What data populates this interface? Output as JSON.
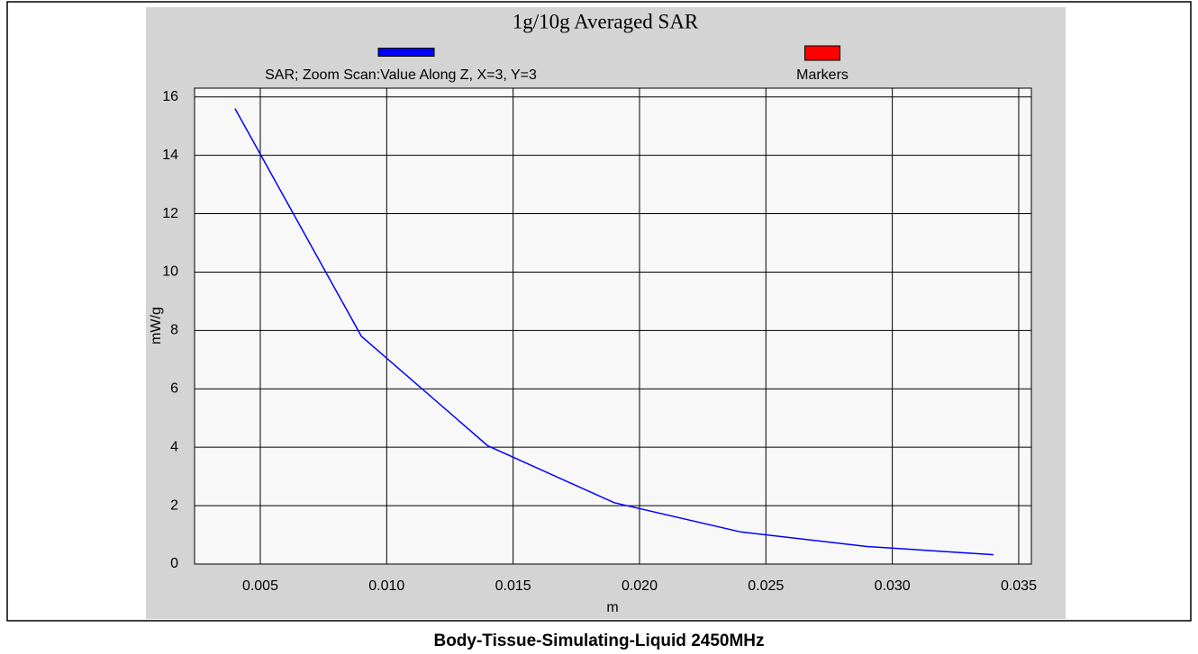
{
  "chart_data": {
    "type": "line",
    "title": "1g/10g Averaged SAR",
    "caption": "Body-Tissue-Simulating-Liquid 2450MHz",
    "x_label": "m",
    "y_label": "mW/g",
    "x": [
      0.004,
      0.009,
      0.014,
      0.019,
      0.024,
      0.029,
      0.034
    ],
    "series": [
      {
        "name": "SAR; Zoom Scan:Value Along Z, X=3, Y=3",
        "color": "#0000ff",
        "values": [
          15.6,
          7.8,
          4.05,
          2.1,
          1.1,
          0.6,
          0.32
        ]
      },
      {
        "name": "Markers",
        "color": "#ff0000",
        "values": [
          null,
          null,
          null,
          null,
          null,
          null,
          null
        ]
      }
    ],
    "xlim": [
      0.0024,
      0.0355
    ],
    "ylim": [
      0,
      16.3
    ],
    "xticks": [
      0.005,
      {
        "value": 0.01,
        "label": "0.010"
      },
      0.015,
      {
        "value": 0.02,
        "label": "0.020"
      },
      0.025,
      {
        "value": 0.03,
        "label": "0.030"
      },
      0.035
    ],
    "yticks": [
      0,
      2,
      4,
      6,
      8,
      10,
      12,
      14,
      16
    ],
    "grid": true
  }
}
